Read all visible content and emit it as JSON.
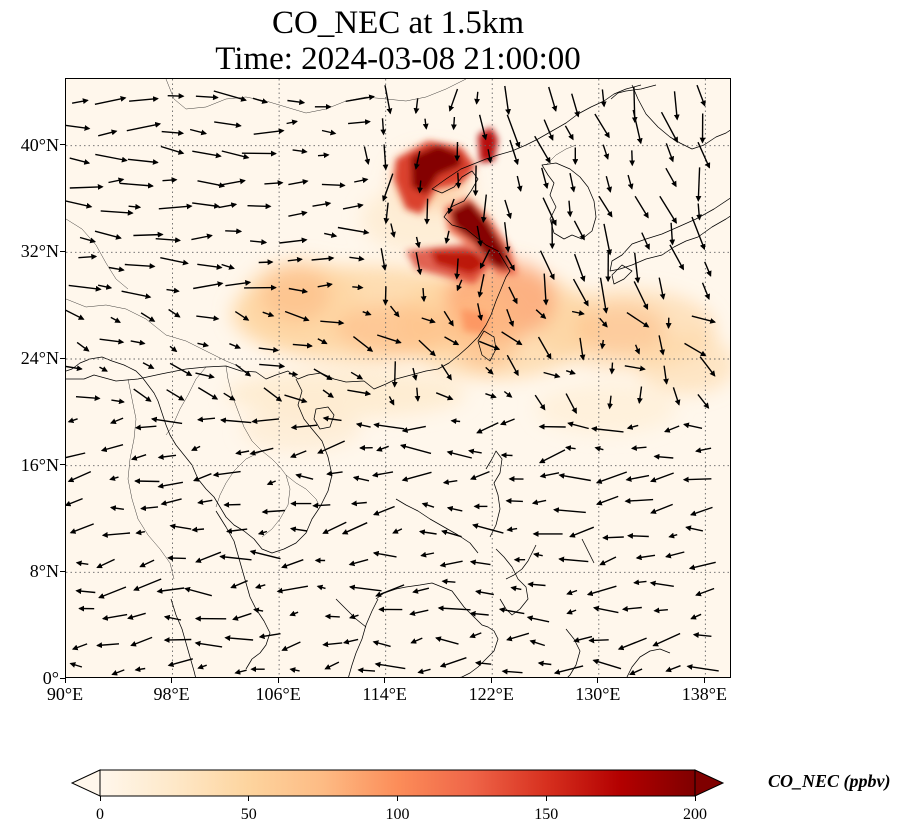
{
  "title": {
    "line1": "CO_NEC at 1.5km",
    "line2": "Time: 2024-03-08 21:00:00"
  },
  "map": {
    "lon_range": [
      90,
      140
    ],
    "lat_range": [
      0,
      45
    ],
    "lon_ticks": [
      "90°E",
      "98°E",
      "106°E",
      "114°E",
      "122°E",
      "130°E",
      "138°E"
    ],
    "lat_ticks": [
      "0°",
      "8°N",
      "16°N",
      "24°N",
      "32°N",
      "40°N"
    ],
    "gridlines": "dotted",
    "background_color": "#fff7ec",
    "coastline_color": "#000000",
    "wind_vectors": "black arrows"
  },
  "colorbar": {
    "label": "CO_NEC (ppbv)",
    "ticks": [
      "0",
      "50",
      "100",
      "150",
      "200"
    ],
    "range": [
      0,
      200
    ],
    "colormap": "OrRd",
    "colors": [
      "#fff7ec",
      "#fee8c8",
      "#fdd49e",
      "#fdbb84",
      "#fc8d59",
      "#ef6548",
      "#d7301f",
      "#b30000",
      "#7f0000"
    ],
    "extend": "both"
  }
}
